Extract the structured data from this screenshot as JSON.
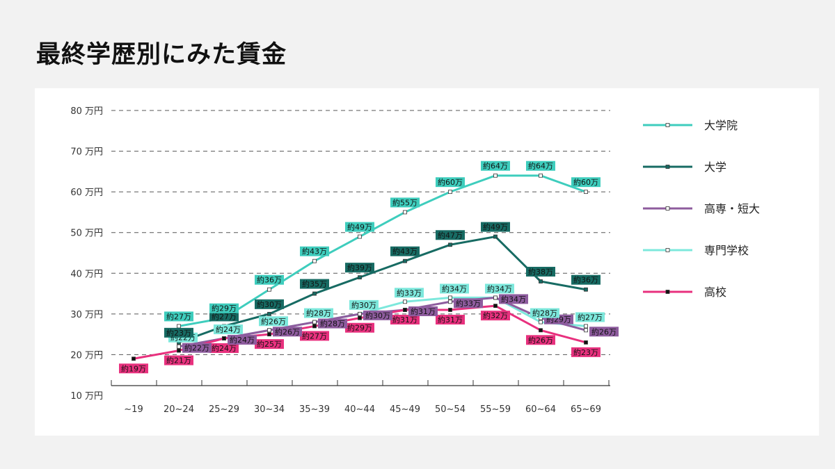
{
  "title": "最終学歴別にみた賃金",
  "chart_data": {
    "type": "line",
    "title": "最終学歴別にみた賃金",
    "categories": [
      "~19",
      "20~24",
      "25~29",
      "30~34",
      "35~39",
      "40~44",
      "45~49",
      "50~54",
      "55~59",
      "60~64",
      "65~69"
    ],
    "y_tick_labels": [
      "10 万円",
      "20 万円",
      "30 万円",
      "40 万円",
      "50 万円",
      "60 万円",
      "70 万円",
      "80 万円"
    ],
    "y_ticks": [
      10,
      20,
      30,
      40,
      50,
      60,
      70,
      80
    ],
    "ylim": [
      10,
      80
    ],
    "unit": "万円",
    "grid": true,
    "legend_position": "right",
    "series": [
      {
        "name": "大学院",
        "color": "#3ecdbd",
        "marker_fill": "#ffffff",
        "label_color": "#3ecdbd",
        "values": [
          null,
          27,
          29,
          36,
          43,
          49,
          55,
          60,
          64,
          64,
          60
        ],
        "labels": [
          null,
          "約27万",
          "約29万",
          "約36万",
          "約43万",
          "約49万",
          "約55万",
          "約60万",
          "約64万",
          "約64万",
          "約60万"
        ]
      },
      {
        "name": "大学",
        "color": "#176b63",
        "marker_fill": "#176b63",
        "label_color": "#176b63",
        "values": [
          null,
          23,
          27,
          30,
          35,
          39,
          43,
          47,
          49,
          38,
          36
        ],
        "labels": [
          null,
          "約23万",
          "約27万",
          "約30万",
          "約35万",
          "約39万",
          "約43万",
          "約47万",
          "約49万",
          "約38万",
          "約36万"
        ]
      },
      {
        "name": "高専・短大",
        "color": "#8e5c9e",
        "marker_fill": "#ffffff",
        "label_color": "#8e5c9e",
        "values": [
          null,
          22,
          24,
          26,
          28,
          30,
          31,
          33,
          34,
          29,
          26
        ],
        "labels": [
          null,
          "約22万",
          "約24万",
          "約26万",
          "約28万",
          "約30万",
          "約31万",
          "約33万",
          "約34万",
          "約29万",
          "約26万"
        ]
      },
      {
        "name": "専門学校",
        "color": "#7de8dc",
        "marker_fill": "#ffffff",
        "label_color": "#7de8dc",
        "values": [
          null,
          22,
          24,
          26,
          28,
          30,
          33,
          34,
          34,
          28,
          27
        ],
        "labels": [
          null,
          "約22万",
          "約24万",
          "約26万",
          "約28万",
          "約30万",
          "約33万",
          "約34万",
          "約34万",
          "約28万",
          "約27万"
        ]
      },
      {
        "name": "高校",
        "color": "#e8317e",
        "marker_fill": "#111111",
        "label_color": "#e8317e",
        "values": [
          19,
          21,
          24,
          25,
          27,
          29,
          31,
          31,
          32,
          26,
          23
        ],
        "labels": [
          "約19万",
          "約21万",
          "約24万",
          "約25万",
          "約27万",
          "約29万",
          "約31万",
          "約31万",
          "約32万",
          "約26万",
          "約23万"
        ]
      }
    ]
  }
}
